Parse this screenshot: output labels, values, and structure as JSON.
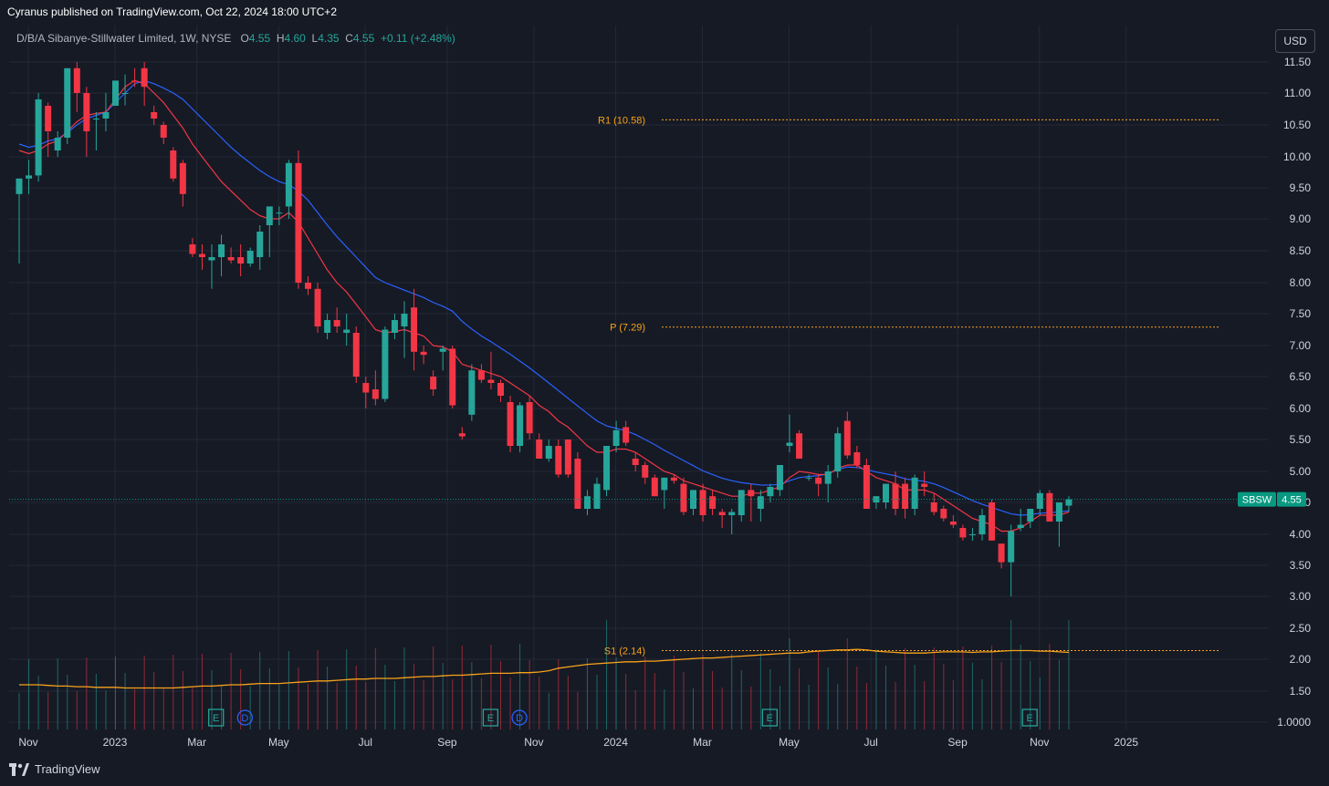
{
  "header": {
    "published": "Cyranus published on TradingView.com, Oct 22, 2024 18:00 UTC+2",
    "symbol_desc": "D/B/A Sibanye-Stillwater Limited, 1W, NYSE",
    "o_label": "O",
    "o": "4.55",
    "h_label": "H",
    "h": "4.60",
    "l_label": "L",
    "l": "4.35",
    "c_label": "C",
    "c": "4.55",
    "change": "+0.11 (+2.48%)"
  },
  "toolbar": {
    "currency": "USD"
  },
  "footer": {
    "brand": "TradingView"
  },
  "colors": {
    "bg": "#161a25",
    "grid": "#242836",
    "up": "#26a69a",
    "down": "#f23645",
    "ema_fast": "#f23645",
    "ema_slow": "#2962ff",
    "volume_ma": "#f7a21b",
    "pivot": "#f7a21b",
    "price_tag": "#089981"
  },
  "chart_data": {
    "type": "candlestick",
    "symbol": "SBSW",
    "last_price": 4.55,
    "y_axis": {
      "scale": "log",
      "ticks": [
        11.5,
        11.0,
        10.5,
        10.0,
        9.5,
        9.0,
        8.5,
        8.0,
        7.5,
        7.0,
        6.5,
        6.0,
        5.5,
        5.0,
        4.5,
        4.0,
        3.5,
        3.0,
        2.5,
        2.0,
        1.5,
        1.0
      ],
      "tick_labels": [
        "11.50",
        "11.00",
        "10.50",
        "10.00",
        "9.50",
        "9.00",
        "8.50",
        "8.00",
        "7.50",
        "7.00",
        "6.50",
        "6.00",
        "5.50",
        "5.00",
        "4.50",
        "4.00",
        "3.50",
        "3.00",
        "2.50",
        "2.00",
        "1.50",
        "1.0000"
      ]
    },
    "x_axis": {
      "labels": [
        {
          "t": "Nov",
          "w": 0
        },
        {
          "t": "2023",
          "w": 9
        },
        {
          "t": "Mar",
          "w": 17.5
        },
        {
          "t": "May",
          "w": 26
        },
        {
          "t": "Jul",
          "w": 35
        },
        {
          "t": "Sep",
          "w": 43.5
        },
        {
          "t": "Nov",
          "w": 52.5
        },
        {
          "t": "2024",
          "w": 61
        },
        {
          "t": "Mar",
          "w": 70
        },
        {
          "t": "May",
          "w": 79
        },
        {
          "t": "Jul",
          "w": 87.5
        },
        {
          "t": "Sep",
          "w": 96.5
        },
        {
          "t": "Nov",
          "w": 105
        },
        {
          "t": "2025",
          "w": 114
        }
      ]
    },
    "pivots": [
      {
        "label": "R1 (10.58)",
        "value": 10.58
      },
      {
        "label": "P (7.29)",
        "value": 7.29
      },
      {
        "label": "S1 (2.14)",
        "value": 2.14
      }
    ],
    "candles": [
      [
        9.4,
        9.65,
        8.3,
        9.65
      ],
      [
        9.65,
        9.95,
        9.4,
        9.7
      ],
      [
        9.7,
        11.0,
        9.6,
        10.9
      ],
      [
        10.8,
        10.85,
        10.0,
        10.4
      ],
      [
        10.1,
        10.4,
        10.0,
        10.3
      ],
      [
        10.3,
        11.6,
        10.2,
        11.4
      ],
      [
        11.4,
        11.5,
        10.7,
        11.0
      ],
      [
        11.0,
        11.1,
        10.0,
        10.4
      ],
      [
        10.6,
        10.7,
        10.1,
        10.6
      ],
      [
        10.6,
        11.0,
        10.4,
        10.7
      ],
      [
        10.8,
        12.0,
        10.8,
        11.8
      ],
      [
        11.8,
        12.2,
        11.7,
        12.0
      ],
      [
        11.8,
        11.9,
        11.4,
        11.6
      ],
      [
        11.4,
        11.5,
        10.8,
        11.1
      ],
      [
        10.7,
        10.8,
        10.5,
        10.6
      ],
      [
        10.5,
        10.55,
        10.2,
        10.3
      ],
      [
        10.1,
        10.15,
        9.6,
        9.65
      ],
      [
        9.9,
        9.95,
        9.2,
        9.4
      ],
      [
        8.6,
        8.7,
        8.4,
        8.45
      ],
      [
        8.45,
        8.6,
        8.2,
        8.4
      ],
      [
        8.35,
        8.6,
        7.9,
        8.4
      ],
      [
        8.4,
        8.75,
        8.1,
        8.6
      ],
      [
        8.4,
        8.55,
        8.3,
        8.35
      ],
      [
        8.4,
        8.6,
        8.1,
        8.3
      ],
      [
        8.3,
        8.55,
        8.25,
        8.5
      ],
      [
        8.4,
        8.9,
        8.2,
        8.8
      ],
      [
        8.9,
        9.2,
        8.4,
        9.2
      ],
      [
        9.1,
        9.2,
        8.9,
        9.1
      ],
      [
        9.2,
        9.95,
        9.0,
        9.9
      ],
      [
        9.9,
        10.1,
        7.9,
        8.0
      ],
      [
        8.0,
        8.1,
        7.8,
        7.9
      ],
      [
        7.9,
        8.0,
        7.2,
        7.3
      ],
      [
        7.2,
        7.5,
        7.1,
        7.4
      ],
      [
        7.4,
        7.6,
        7.2,
        7.3
      ],
      [
        7.2,
        7.5,
        7.0,
        7.25
      ],
      [
        7.2,
        7.3,
        6.4,
        6.5
      ],
      [
        6.4,
        6.5,
        6.0,
        6.25
      ],
      [
        6.3,
        6.6,
        6.05,
        6.15
      ],
      [
        6.15,
        7.3,
        6.1,
        7.25
      ],
      [
        7.2,
        7.5,
        7.1,
        7.4
      ],
      [
        7.3,
        7.7,
        6.8,
        7.5
      ],
      [
        7.6,
        7.9,
        6.6,
        6.9
      ],
      [
        6.9,
        7.0,
        6.7,
        6.85
      ],
      [
        6.5,
        6.6,
        6.2,
        6.3
      ],
      [
        6.9,
        7.0,
        6.6,
        6.95
      ],
      [
        6.95,
        7.0,
        6.0,
        6.05
      ],
      [
        5.6,
        5.7,
        5.5,
        5.55
      ],
      [
        5.9,
        6.7,
        5.8,
        6.6
      ],
      [
        6.6,
        6.7,
        6.4,
        6.45
      ],
      [
        6.45,
        6.9,
        6.3,
        6.4
      ],
      [
        6.4,
        6.45,
        6.1,
        6.2
      ],
      [
        6.1,
        6.2,
        5.3,
        5.4
      ],
      [
        5.4,
        6.1,
        5.3,
        6.05
      ],
      [
        6.1,
        6.2,
        5.5,
        5.6
      ],
      [
        5.5,
        5.6,
        5.2,
        5.2
      ],
      [
        5.2,
        5.5,
        5.15,
        5.4
      ],
      [
        5.4,
        5.5,
        4.9,
        4.95
      ],
      [
        5.5,
        5.5,
        4.9,
        4.95
      ],
      [
        5.2,
        5.3,
        4.4,
        4.4
      ],
      [
        4.4,
        4.7,
        4.3,
        4.6
      ],
      [
        4.4,
        4.9,
        4.4,
        4.8
      ],
      [
        4.7,
        5.4,
        4.6,
        5.4
      ],
      [
        5.4,
        5.8,
        5.3,
        5.65
      ],
      [
        5.7,
        5.8,
        5.4,
        5.45
      ],
      [
        5.2,
        5.3,
        5.0,
        5.1
      ],
      [
        5.1,
        5.15,
        4.8,
        4.9
      ],
      [
        4.9,
        4.95,
        4.6,
        4.6
      ],
      [
        4.7,
        4.9,
        4.4,
        4.9
      ],
      [
        4.9,
        4.95,
        4.8,
        4.85
      ],
      [
        4.8,
        4.9,
        4.3,
        4.35
      ],
      [
        4.4,
        4.7,
        4.3,
        4.7
      ],
      [
        4.7,
        4.8,
        4.2,
        4.3
      ],
      [
        4.6,
        4.7,
        4.3,
        4.4
      ],
      [
        4.35,
        4.4,
        4.1,
        4.3
      ],
      [
        4.3,
        4.4,
        4.0,
        4.35
      ],
      [
        4.3,
        4.7,
        4.2,
        4.7
      ],
      [
        4.7,
        4.8,
        4.2,
        4.6
      ],
      [
        4.4,
        4.7,
        4.2,
        4.6
      ],
      [
        4.6,
        4.8,
        4.5,
        4.75
      ],
      [
        4.7,
        5.1,
        4.6,
        5.1
      ],
      [
        5.4,
        5.9,
        5.3,
        5.45
      ],
      [
        5.6,
        5.65,
        5.2,
        5.2
      ],
      [
        4.9,
        4.95,
        4.85,
        4.9
      ],
      [
        4.9,
        4.95,
        4.6,
        4.8
      ],
      [
        4.8,
        5.1,
        4.5,
        5.0
      ],
      [
        5.0,
        5.7,
        4.9,
        5.6
      ],
      [
        5.8,
        5.95,
        5.2,
        5.25
      ],
      [
        5.3,
        5.4,
        5.05,
        5.1
      ],
      [
        5.1,
        5.2,
        4.4,
        4.4
      ],
      [
        4.5,
        4.6,
        4.4,
        4.6
      ],
      [
        4.5,
        4.8,
        4.4,
        4.8
      ],
      [
        4.8,
        5.0,
        4.3,
        4.4
      ],
      [
        4.8,
        4.9,
        4.25,
        4.4
      ],
      [
        4.4,
        4.95,
        4.3,
        4.9
      ],
      [
        4.8,
        5.0,
        4.6,
        4.75
      ],
      [
        4.5,
        4.65,
        4.3,
        4.35
      ],
      [
        4.4,
        4.45,
        4.2,
        4.25
      ],
      [
        4.2,
        4.3,
        4.1,
        4.15
      ],
      [
        4.1,
        4.15,
        3.9,
        3.95
      ],
      [
        4.0,
        4.1,
        3.9,
        4.0
      ],
      [
        4.0,
        4.4,
        3.9,
        4.3
      ],
      [
        4.5,
        4.55,
        3.9,
        3.9
      ],
      [
        3.85,
        3.85,
        3.45,
        3.55
      ],
      [
        3.55,
        4.15,
        3.0,
        4.05
      ],
      [
        4.1,
        4.4,
        4.05,
        4.15
      ],
      [
        4.2,
        4.4,
        4.1,
        4.4
      ],
      [
        4.4,
        4.7,
        4.3,
        4.65
      ],
      [
        4.65,
        4.7,
        4.2,
        4.2
      ],
      [
        4.2,
        4.45,
        3.8,
        4.5
      ],
      [
        4.45,
        4.6,
        4.35,
        4.55
      ]
    ],
    "ema_fast_values": [
      10.1,
      10.05,
      10.1,
      10.2,
      10.25,
      10.4,
      10.55,
      10.65,
      10.68,
      10.7,
      10.9,
      11.1,
      11.2,
      11.15,
      11.0,
      10.85,
      10.65,
      10.45,
      10.2,
      10.0,
      9.8,
      9.6,
      9.45,
      9.3,
      9.15,
      9.05,
      9.0,
      9.0,
      9.1,
      8.95,
      8.7,
      8.45,
      8.2,
      8.0,
      7.85,
      7.65,
      7.45,
      7.25,
      7.2,
      7.22,
      7.25,
      7.2,
      7.15,
      7.0,
      6.98,
      6.9,
      6.7,
      6.65,
      6.6,
      6.55,
      6.5,
      6.4,
      6.3,
      6.2,
      6.05,
      5.95,
      5.8,
      5.7,
      5.55,
      5.4,
      5.3,
      5.3,
      5.35,
      5.35,
      5.3,
      5.2,
      5.1,
      5.0,
      4.95,
      4.85,
      4.8,
      4.75,
      4.7,
      4.65,
      4.6,
      4.6,
      4.65,
      4.65,
      4.7,
      4.75,
      4.9,
      5.0,
      4.98,
      4.95,
      4.95,
      5.05,
      5.1,
      5.1,
      5.0,
      4.9,
      4.85,
      4.8,
      4.7,
      4.7,
      4.7,
      4.65,
      4.55,
      4.45,
      4.35,
      4.25,
      4.2,
      4.15,
      4.05,
      4.05,
      4.1,
      4.2,
      4.3,
      4.3,
      4.3,
      4.35
    ],
    "ema_slow_values": [
      10.2,
      10.15,
      10.18,
      10.25,
      10.28,
      10.38,
      10.5,
      10.6,
      10.65,
      10.7,
      10.85,
      11.0,
      11.15,
      11.2,
      11.15,
      11.08,
      11.0,
      10.9,
      10.75,
      10.6,
      10.45,
      10.3,
      10.15,
      10.02,
      9.9,
      9.78,
      9.68,
      9.6,
      9.55,
      9.45,
      9.3,
      9.1,
      8.9,
      8.72,
      8.56,
      8.4,
      8.24,
      8.08,
      8.0,
      7.94,
      7.88,
      7.82,
      7.76,
      7.68,
      7.62,
      7.54,
      7.38,
      7.26,
      7.15,
      7.06,
      6.96,
      6.86,
      6.75,
      6.64,
      6.52,
      6.4,
      6.28,
      6.16,
      6.04,
      5.92,
      5.8,
      5.72,
      5.68,
      5.64,
      5.58,
      5.5,
      5.42,
      5.33,
      5.25,
      5.17,
      5.09,
      5.01,
      4.95,
      4.89,
      4.85,
      4.82,
      4.8,
      4.78,
      4.78,
      4.79,
      4.85,
      4.9,
      4.92,
      4.93,
      4.96,
      5.03,
      5.07,
      5.06,
      5.03,
      4.99,
      4.96,
      4.93,
      4.88,
      4.86,
      4.84,
      4.8,
      4.74,
      4.67,
      4.6,
      4.53,
      4.47,
      4.42,
      4.37,
      4.32,
      4.3,
      4.31,
      4.33,
      4.34,
      4.35,
      4.37
    ],
    "volume_ma_values": [
      1.6,
      1.6,
      1.6,
      1.59,
      1.58,
      1.58,
      1.57,
      1.57,
      1.56,
      1.56,
      1.56,
      1.55,
      1.55,
      1.55,
      1.55,
      1.55,
      1.55,
      1.56,
      1.57,
      1.58,
      1.58,
      1.59,
      1.6,
      1.6,
      1.61,
      1.62,
      1.62,
      1.62,
      1.63,
      1.64,
      1.65,
      1.66,
      1.66,
      1.67,
      1.68,
      1.69,
      1.69,
      1.7,
      1.7,
      1.7,
      1.71,
      1.72,
      1.73,
      1.73,
      1.74,
      1.75,
      1.75,
      1.76,
      1.77,
      1.78,
      1.78,
      1.78,
      1.79,
      1.79,
      1.8,
      1.82,
      1.86,
      1.88,
      1.9,
      1.92,
      1.93,
      1.94,
      1.95,
      1.96,
      1.96,
      1.97,
      1.97,
      1.98,
      1.99,
      2.0,
      2.01,
      2.02,
      2.02,
      2.03,
      2.04,
      2.05,
      2.06,
      2.07,
      2.08,
      2.09,
      2.1,
      2.1,
      2.12,
      2.13,
      2.14,
      2.15,
      2.15,
      2.16,
      2.15,
      2.13,
      2.12,
      2.11,
      2.1,
      2.1,
      2.1,
      2.11,
      2.12,
      2.12,
      2.12,
      2.11,
      2.12,
      2.12,
      2.13,
      2.14,
      2.14,
      2.14,
      2.13,
      2.13,
      2.12,
      2.11
    ],
    "earnings_markers": [
      {
        "w": 19.5,
        "type": "E"
      },
      {
        "w": 22.5,
        "type": "D"
      },
      {
        "w": 48,
        "type": "E"
      },
      {
        "w": 51,
        "type": "D"
      },
      {
        "w": 77,
        "type": "E"
      },
      {
        "w": 104,
        "type": "E"
      }
    ]
  }
}
